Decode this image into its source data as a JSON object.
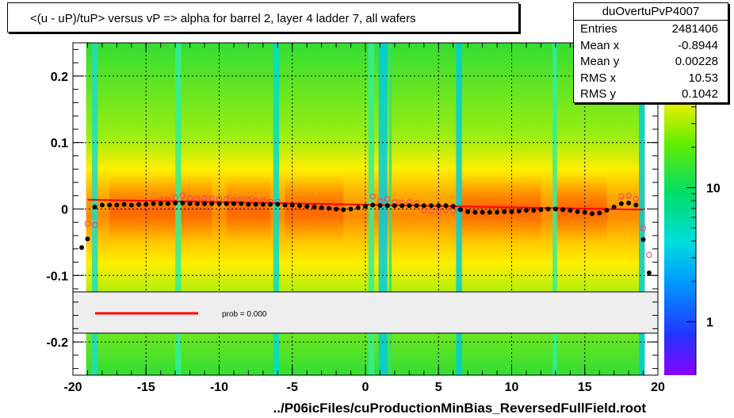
{
  "title": "<(u - uP)/tuP> versus   vP => alpha for barrel 2, layer 4 ladder 7, all wafers",
  "stats": {
    "name": "duOvertuPvP4007",
    "rows": [
      {
        "label": "Entries",
        "value": "2481406"
      },
      {
        "label": "Mean x",
        "value": "-0.8944"
      },
      {
        "label": "Mean y",
        "value": "0.00228"
      },
      {
        "label": "RMS x",
        "value": "10.53"
      },
      {
        "label": "RMS y",
        "value": "0.1042"
      }
    ]
  },
  "fit_legend": {
    "text": "prob = 0.000",
    "line_color": "#ff0000"
  },
  "footer": "../P06icFiles/cuProductionMinBias_ReversedFullField.root",
  "colors": {
    "fit": "#ff0000",
    "frame": "#000000",
    "profile_filled": "#000000",
    "profile_open": "#ff3366"
  },
  "chart_data": {
    "type": "heatmap",
    "title": "<(u - uP)/tuP> versus   vP => alpha for barrel 2, layer 4 ladder 7, all wafers",
    "xlim": [
      -20,
      20
    ],
    "ylim": [
      -0.25,
      0.25
    ],
    "x_ticks": [
      "-20",
      "-15",
      "-10",
      "-5",
      "0",
      "5",
      "10",
      "15",
      "20"
    ],
    "y_ticks": [
      "-0.2",
      "-0.1",
      "0",
      "0.1",
      "0.2"
    ],
    "z_scale": "log",
    "z_ticks": [
      "1",
      "10"
    ],
    "z_tick_partial": "2",
    "grid": true,
    "fit_line": {
      "x": [
        -19,
        19
      ],
      "y": [
        0.014,
        -0.001
      ]
    },
    "series": [
      {
        "name": "profile filled",
        "x": [
          -19.4,
          -19.0,
          -18.5,
          -18.0,
          -17.5,
          -17.0,
          -16.5,
          -16.0,
          -15.5,
          -15.0,
          -14.5,
          -14.0,
          -13.5,
          -13.0,
          -12.5,
          -12.0,
          -11.5,
          -11.0,
          -10.5,
          -10.0,
          -9.5,
          -9.0,
          -8.5,
          -8.0,
          -7.5,
          -7.0,
          -6.5,
          -6.0,
          -5.5,
          -5.0,
          -4.5,
          -4.0,
          -3.5,
          -3.0,
          -2.5,
          -2.0,
          -1.5,
          -1.0,
          -0.5,
          0.0,
          0.5,
          1.0,
          1.5,
          2.0,
          2.5,
          3.0,
          3.5,
          4.0,
          4.5,
          5.0,
          5.5,
          6.0,
          6.5,
          7.0,
          7.5,
          8.0,
          8.5,
          9.0,
          9.5,
          10.0,
          10.5,
          11.0,
          11.5,
          12.0,
          12.5,
          13.0,
          13.5,
          14.0,
          14.5,
          15.0,
          15.5,
          16.0,
          16.5,
          17.0,
          17.5,
          18.0,
          18.5,
          19.0,
          19.4
        ],
        "y": [
          -0.058,
          -0.045,
          0.003,
          0.006,
          0.006,
          0.006,
          0.007,
          0.006,
          0.007,
          0.007,
          0.008,
          0.008,
          0.008,
          0.009,
          0.009,
          0.008,
          0.008,
          0.008,
          0.008,
          0.008,
          0.008,
          0.008,
          0.008,
          0.007,
          0.007,
          0.007,
          0.007,
          0.007,
          0.006,
          0.006,
          0.005,
          0.004,
          0.003,
          0.002,
          0.001,
          0.0,
          -0.001,
          0.0,
          0.002,
          0.004,
          0.006,
          0.005,
          0.005,
          0.005,
          0.005,
          0.005,
          0.005,
          0.005,
          0.005,
          0.005,
          0.005,
          0.004,
          -0.001,
          -0.004,
          -0.005,
          -0.005,
          -0.005,
          -0.005,
          -0.004,
          -0.004,
          -0.003,
          -0.002,
          -0.002,
          -0.001,
          0.0,
          0.0,
          -0.001,
          -0.002,
          -0.004,
          -0.005,
          -0.007,
          -0.006,
          -0.002,
          0.003,
          0.008,
          0.009,
          0.006,
          -0.046,
          -0.096
        ]
      },
      {
        "name": "profile open",
        "x": [
          -19.0,
          -18.5,
          -14.0,
          -13.5,
          -13.0,
          -12.5,
          -12.0,
          -11.5,
          -11.0,
          -10.5,
          -10.0,
          -9.5,
          -9.0,
          -8.5,
          -8.0,
          -7.5,
          -7.0,
          -6.5,
          -6.0,
          0.5,
          1.0,
          1.5,
          2.0,
          2.5,
          3.0,
          3.5,
          4.0,
          4.5,
          5.0,
          5.5,
          6.0,
          17.5,
          18.0,
          18.5,
          19.0,
          19.4
        ],
        "y": [
          -0.022,
          -0.024,
          0.013,
          0.014,
          0.017,
          0.02,
          0.016,
          0.015,
          0.016,
          0.016,
          0.015,
          0.015,
          0.014,
          0.014,
          0.013,
          0.012,
          0.012,
          0.011,
          0.011,
          0.019,
          0.012,
          0.015,
          0.01,
          0.009,
          0.01,
          0.009,
          -0.002,
          -0.003,
          -0.002,
          -0.001,
          -0.002,
          0.019,
          0.02,
          0.015,
          -0.029,
          -0.069
        ]
      }
    ]
  }
}
